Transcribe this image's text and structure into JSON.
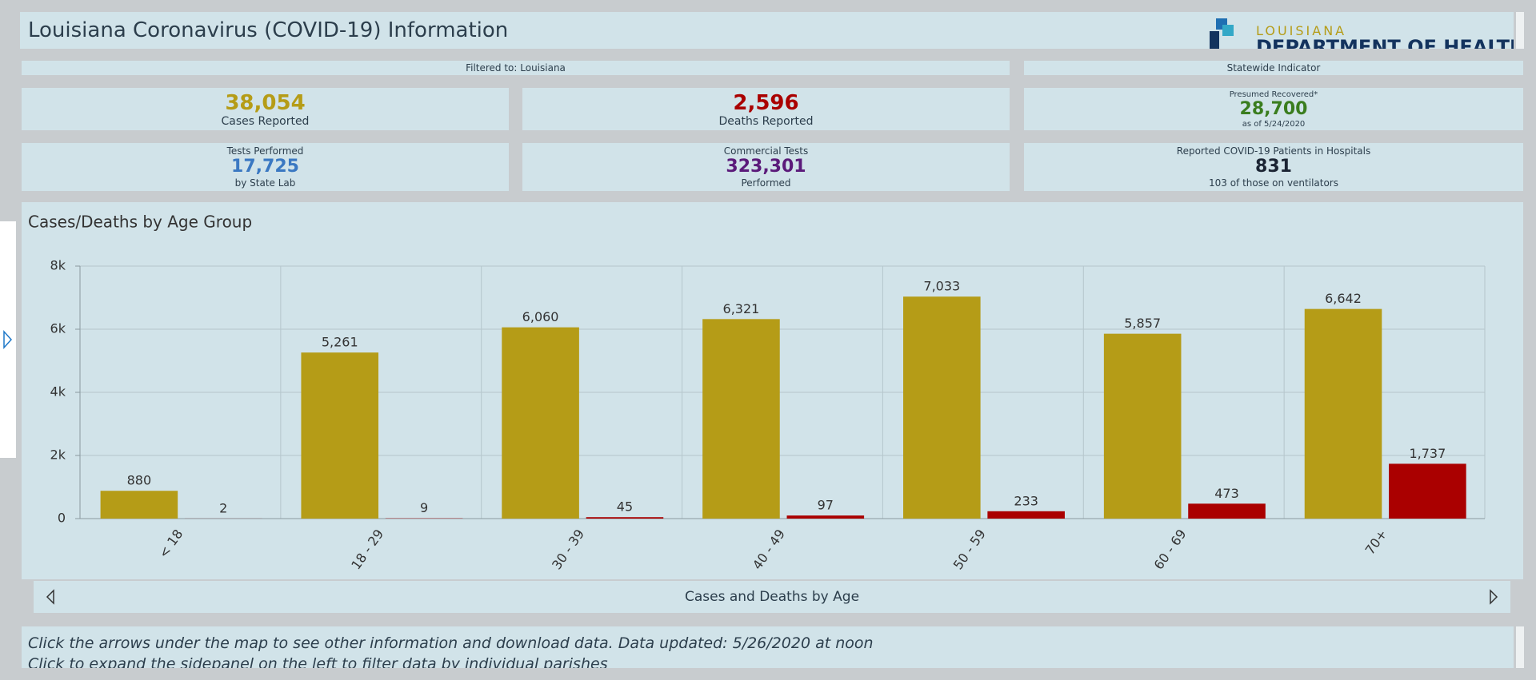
{
  "header": {
    "title": "Louisiana Coronavirus (COVID-19) Information",
    "logo_top": "LOUISIANA",
    "logo_bottom": "DEPARTMENT OF HEALTH"
  },
  "filters": {
    "left": "Filtered to: Louisiana",
    "right": "Statewide Indicator"
  },
  "stats": [
    {
      "value": "38,054",
      "label": "Cases Reported"
    },
    {
      "value": "2,596",
      "label": "Deaths Reported"
    },
    {
      "top": "Presumed Recovered*",
      "value": "28,700",
      "bottom": "as of 5/24/2020"
    },
    {
      "top": "Tests Performed",
      "value": "17,725",
      "bottom": "by State Lab"
    },
    {
      "top": "Commercial Tests",
      "value": "323,301",
      "bottom": "Performed"
    },
    {
      "top": "Reported COVID-19 Patients in Hospitals",
      "value": "831",
      "bottom": "103 of those on ventilators"
    }
  ],
  "chart_data": {
    "type": "bar",
    "title": "Cases/Deaths by Age Group",
    "categories": [
      "< 18",
      "18 - 29",
      "30 - 39",
      "40 - 49",
      "50 - 59",
      "60 - 69",
      "70+"
    ],
    "series": [
      {
        "color": "#b59c17",
        "values": [
          880,
          5261,
          6060,
          6321,
          7033,
          5857,
          6642
        ],
        "value_labels": [
          "880",
          "5,261",
          "6,060",
          "6,321",
          "7,033",
          "5,857",
          "6,642"
        ]
      },
      {
        "color": "#aa0000",
        "values": [
          2,
          9,
          45,
          97,
          233,
          473,
          1737
        ],
        "value_labels": [
          "2",
          "9",
          "45",
          "97",
          "233",
          "473",
          "1,737"
        ]
      }
    ],
    "ylim": [
      0,
      8000
    ],
    "yticks": [
      0,
      {
        "value": 2000,
        "label": "2k"
      },
      {
        "value": 4000,
        "label": "4k"
      },
      {
        "value": 6000,
        "label": "6k"
      },
      {
        "value": 8000,
        "label": "8k"
      }
    ],
    "grid": true
  },
  "nav": {
    "label": "Cases and Deaths by Age"
  },
  "footer": {
    "line1": "Click the arrows under the map to see other information and download data. Data updated: 5/26/2020 at noon",
    "line2": "Click to expand the sidepanel on the left to filter data by individual parishes"
  }
}
